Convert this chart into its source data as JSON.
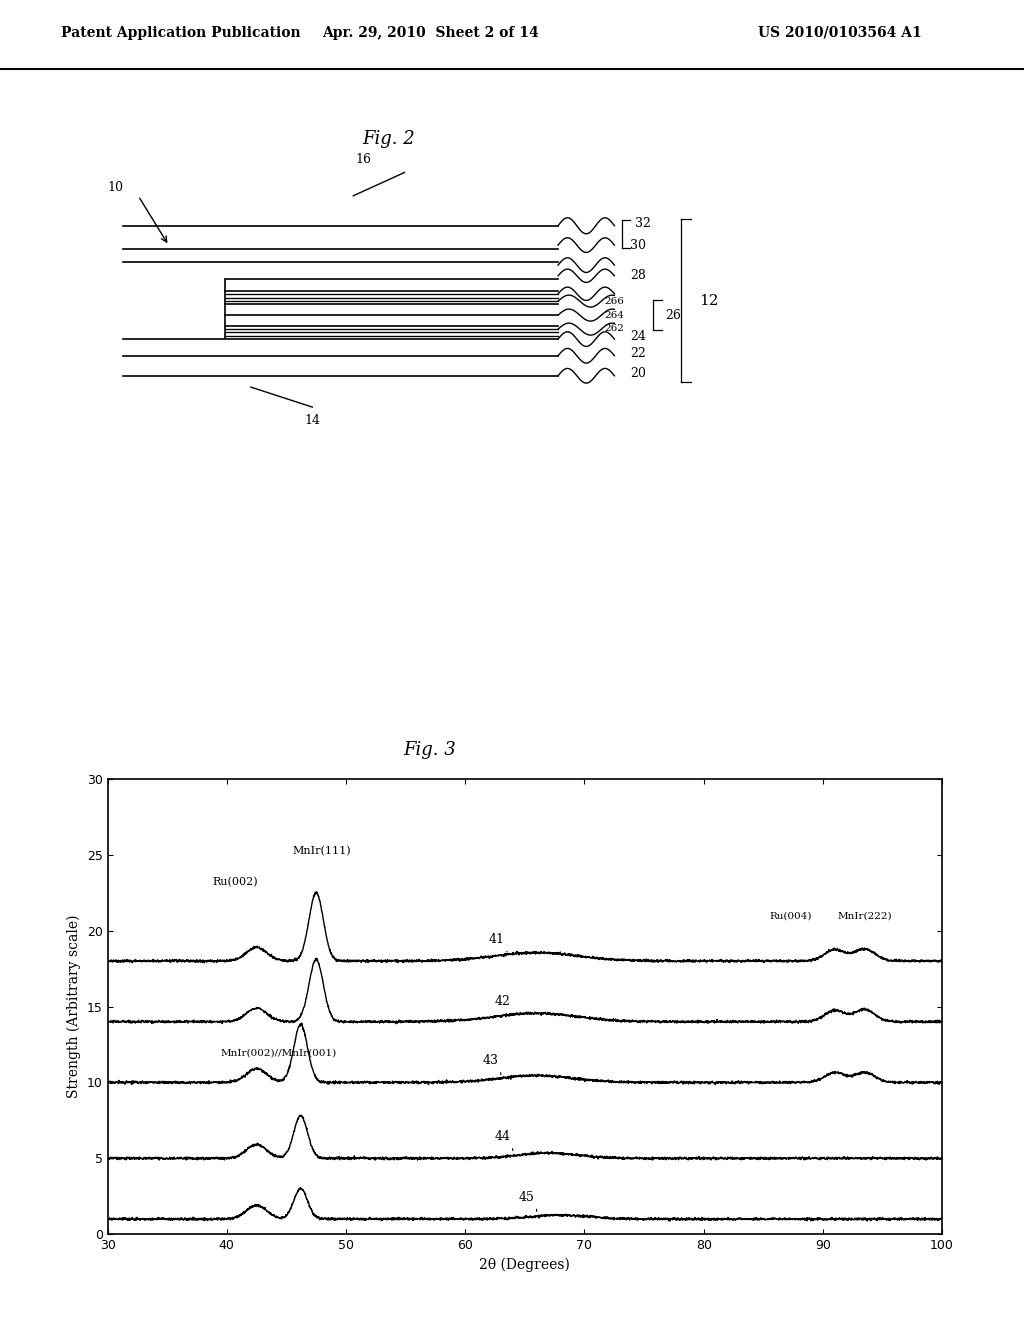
{
  "header_left": "Patent Application Publication",
  "header_center": "Apr. 29, 2010  Sheet 2 of 14",
  "header_right": "US 2010/0103564 A1",
  "fig2_title": "Fig. 2",
  "fig3_title": "Fig. 3",
  "background_color": "#ffffff",
  "fig3_xlabel": "2θ (Degrees)",
  "fig3_ylabel": "Strength (Arbitrary scale)",
  "fig3_xlim": [
    30,
    100
  ],
  "fig3_ylim": [
    0,
    30
  ],
  "fig3_yticks": [
    0,
    5,
    10,
    15,
    20,
    25,
    30
  ],
  "fig3_xticks": [
    30,
    40,
    50,
    60,
    70,
    80,
    90,
    100
  ]
}
